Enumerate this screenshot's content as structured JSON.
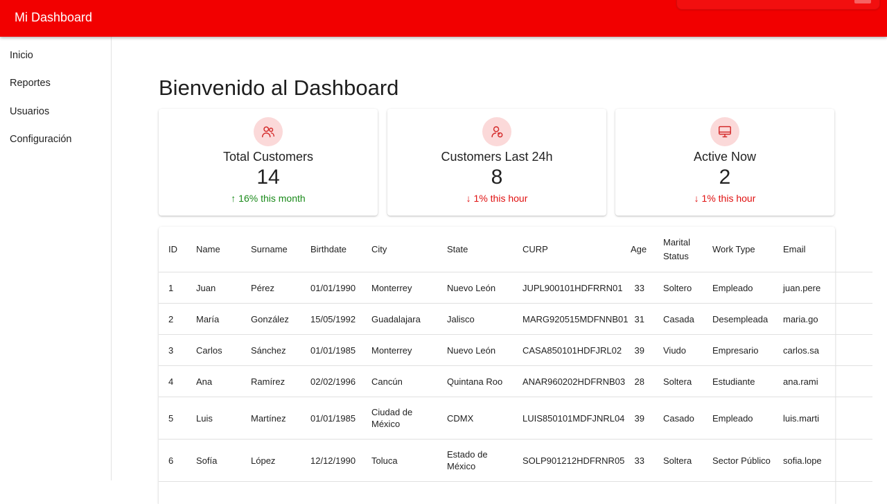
{
  "app": {
    "title": "Mi Dashboard"
  },
  "sidebar": {
    "items": [
      {
        "label": "Inicio"
      },
      {
        "label": "Reportes"
      },
      {
        "label": "Usuarios"
      },
      {
        "label": "Configuración"
      }
    ]
  },
  "page": {
    "title": "Bienvenido al Dashboard"
  },
  "cards": [
    {
      "label": "Total Customers",
      "value": "14",
      "trend": "↑ 16% this month",
      "trend_direction": "up",
      "icon": "users-icon"
    },
    {
      "label": "Customers Last 24h",
      "value": "8",
      "trend": "↓ 1% this hour",
      "trend_direction": "down",
      "icon": "user-refresh-icon"
    },
    {
      "label": "Active Now",
      "value": "2",
      "trend": "↓ 1% this hour",
      "trend_direction": "down",
      "icon": "monitor-icon"
    }
  ],
  "colors": {
    "brand": "#f20000",
    "trend_up": "#1a8a1a",
    "trend_down": "#e01010",
    "icon_bg": "#fbd9d9"
  },
  "table": {
    "columns": [
      "ID",
      "Name",
      "Surname",
      "Birthdate",
      "City",
      "State",
      "CURP",
      "Age",
      "Marital Status",
      "Work Type",
      "Email"
    ],
    "rows": [
      [
        "1",
        "Juan",
        "Pérez",
        "01/01/1990",
        "Monterrey",
        "Nuevo León",
        "JUPL900101HDFRRN01",
        "33",
        "Soltero",
        "Empleado",
        "juan.pere"
      ],
      [
        "2",
        "María",
        "González",
        "15/05/1992",
        "Guadalajara",
        "Jalisco",
        "MARG920515MDFNNB01",
        "31",
        "Casada",
        "Desempleada",
        "maria.go"
      ],
      [
        "3",
        "Carlos",
        "Sánchez",
        "01/01/1985",
        "Monterrey",
        "Nuevo León",
        "CASA850101HDFJRL02",
        "39",
        "Viudo",
        "Empresario",
        "carlos.sa"
      ],
      [
        "4",
        "Ana",
        "Ramírez",
        "02/02/1996",
        "Cancún",
        "Quintana Roo",
        "ANAR960202HDFRNB03",
        "28",
        "Soltera",
        "Estudiante",
        "ana.rami"
      ],
      [
        "5",
        "Luis",
        "Martínez",
        "01/01/1985",
        "Ciudad de México",
        "CDMX",
        "LUIS850101MDFJNRL04",
        "39",
        "Casado",
        "Empleado",
        "luis.marti"
      ],
      [
        "6",
        "Sofía",
        "López",
        "12/12/1990",
        "Toluca",
        "Estado de México",
        "SOLP901212HDFRNR05",
        "33",
        "Soltera",
        "Sector Público",
        "sofia.lope"
      ]
    ]
  }
}
